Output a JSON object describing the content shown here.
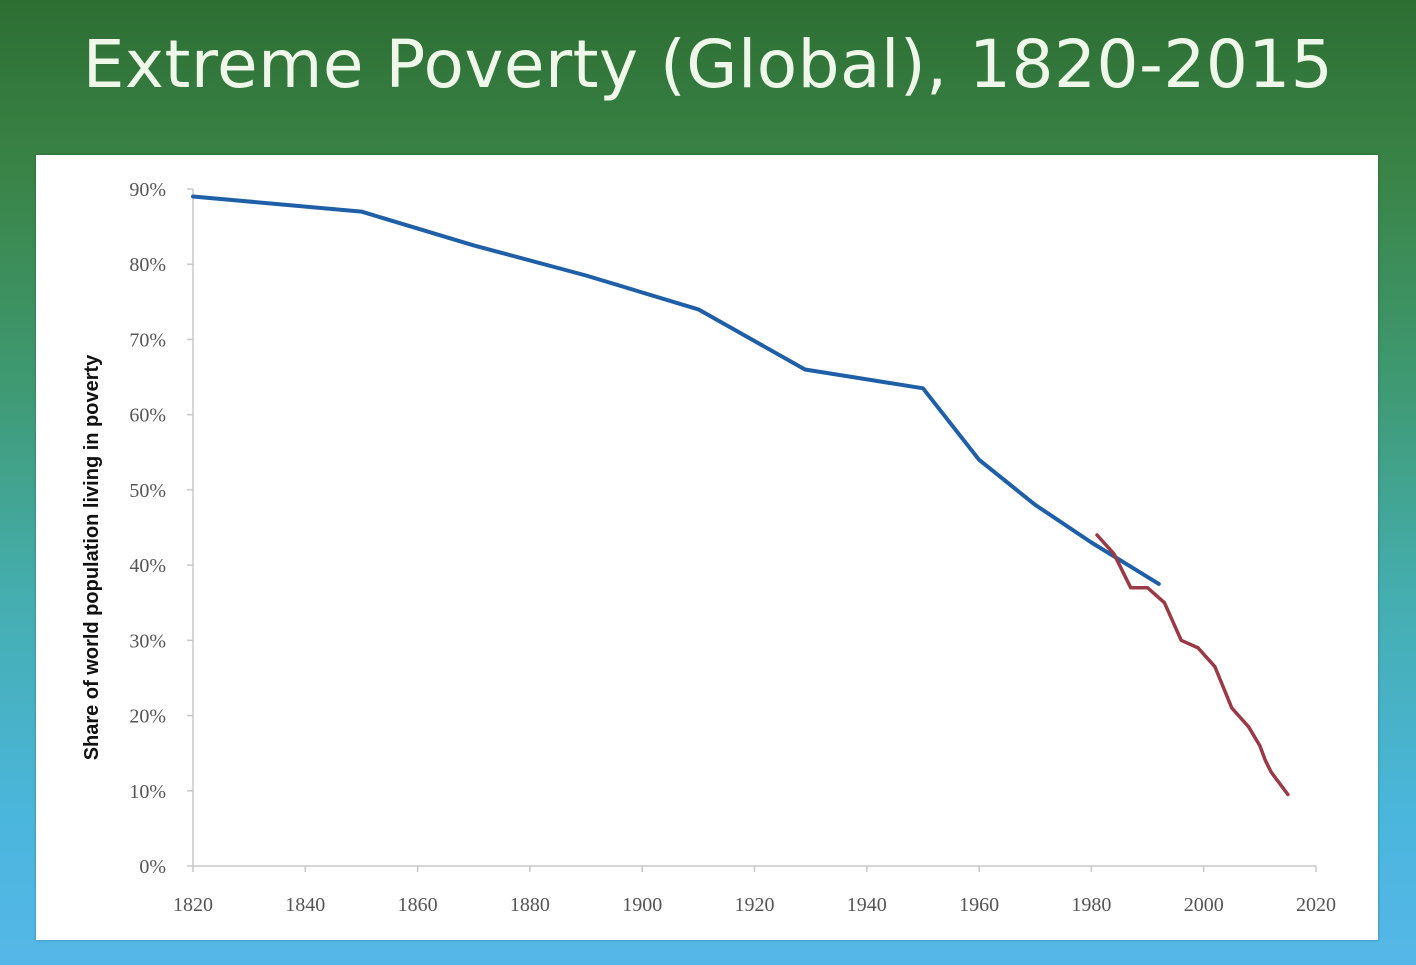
{
  "slide": {
    "title": "Extreme Poverty (Global), 1820-2015"
  },
  "colors": {
    "background_top": "#2d6e33",
    "background_bottom": "#55b7e8",
    "series_historical": "#1f5fa8",
    "series_recent": "#9b3a45"
  },
  "chart_data": {
    "type": "line",
    "title": "",
    "xlabel": "",
    "ylabel": "Share of world population living in poverty",
    "xlim": [
      1820,
      2020
    ],
    "ylim": [
      0,
      90
    ],
    "x_ticks": [
      "1820",
      "1840",
      "1860",
      "1880",
      "1900",
      "1920",
      "1940",
      "1960",
      "1980",
      "2000",
      "2020"
    ],
    "y_ticks": [
      "0%",
      "10%",
      "20%",
      "30%",
      "40%",
      "50%",
      "60%",
      "70%",
      "80%",
      "90%"
    ],
    "grid": false,
    "legend": "none",
    "series": [
      {
        "x": [
          1820,
          1850,
          1870,
          1890,
          1910,
          1929,
          1950,
          1960,
          1970,
          1980,
          1992
        ],
        "y": [
          89,
          87,
          82.5,
          78.5,
          74,
          66,
          63.5,
          54,
          48,
          43,
          37.5
        ]
      },
      {
        "x": [
          1981,
          1984,
          1987,
          1990,
          1993,
          1996,
          1999,
          2002,
          2005,
          2008,
          2010,
          2011,
          2012,
          2015
        ],
        "y": [
          44,
          41.5,
          37,
          37,
          35,
          30,
          29,
          26.5,
          21,
          18.5,
          16,
          14,
          12.5,
          9.5
        ]
      }
    ]
  }
}
